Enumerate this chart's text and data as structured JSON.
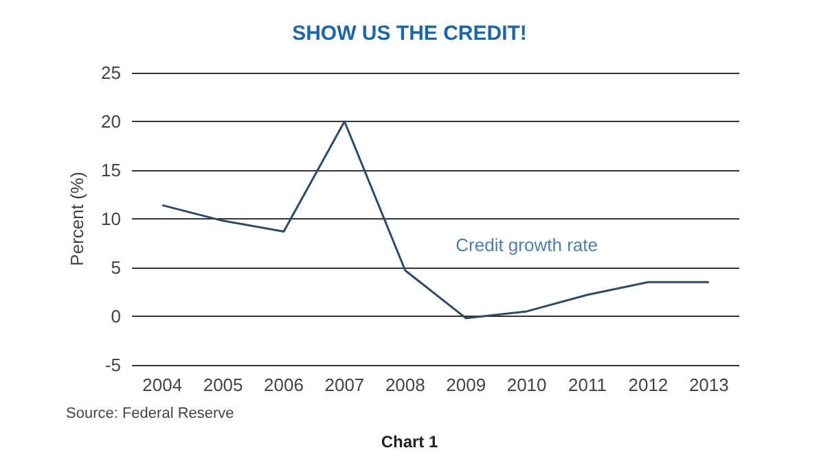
{
  "chart_data": {
    "type": "line",
    "title": "SHOW US THE CREDIT!",
    "ylabel": "Percent (%)",
    "categories": [
      "2004",
      "2005",
      "2006",
      "2007",
      "2008",
      "2009",
      "2010",
      "2011",
      "2012",
      "2013"
    ],
    "series": [
      {
        "name": "Credit growth rate",
        "color": "#2e4a66",
        "values": [
          11.4,
          9.8,
          8.7,
          20,
          4.7,
          -0.2,
          0.5,
          2.2,
          3.5,
          3.5
        ]
      }
    ],
    "ylim": [
      -5,
      25
    ],
    "yticks": [
      -5,
      0,
      5,
      10,
      15,
      20,
      25
    ],
    "grid": "y",
    "marker": "none",
    "line_style": "solid",
    "annotations": [
      "Source: Federal Reserve",
      "Chart 1"
    ]
  }
}
